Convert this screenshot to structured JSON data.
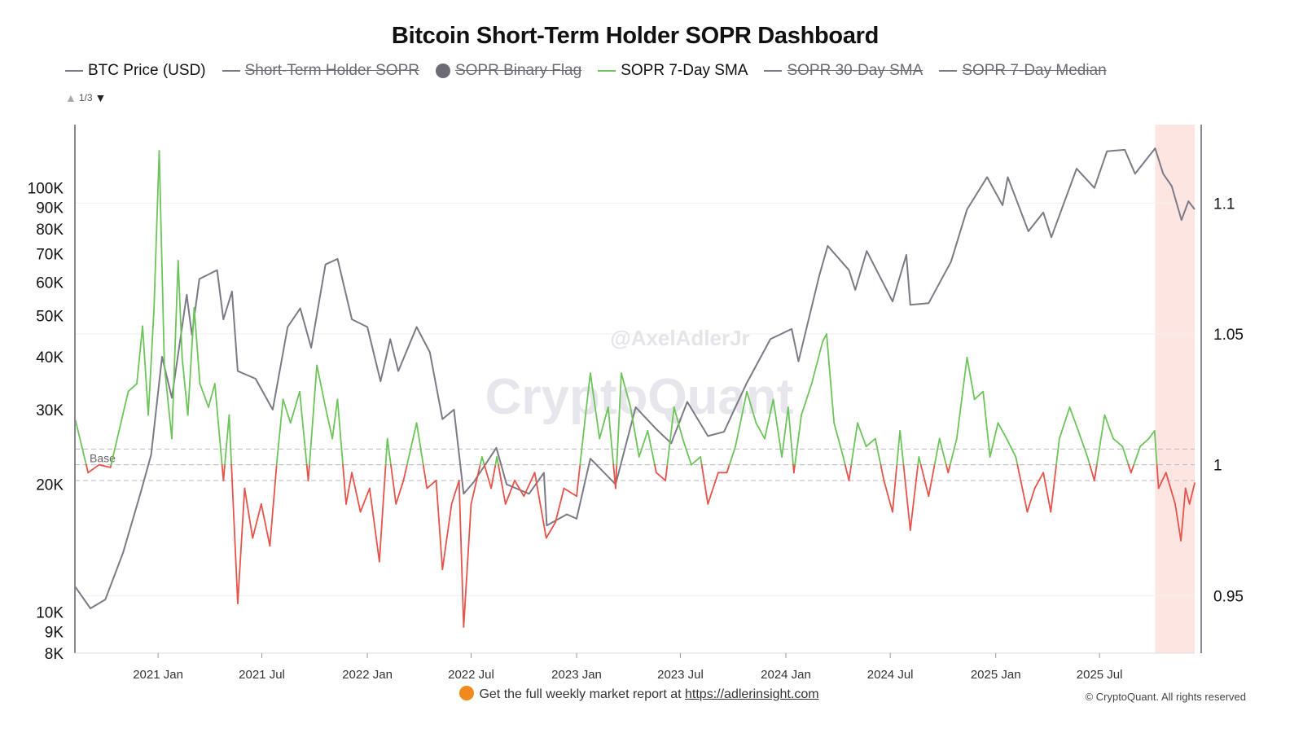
{
  "title": "Bitcoin Short-Term Holder SOPR Dashboard",
  "legend": [
    {
      "label": "BTC Price (USD)",
      "marker": "line",
      "color": "#7d7a87",
      "enabled": true
    },
    {
      "label": "Short-Term Holder SOPR",
      "marker": "line",
      "color": "#7d7a87",
      "enabled": false
    },
    {
      "label": "SOPR Binary Flag",
      "marker": "dot",
      "color": "#6c6a75",
      "enabled": false
    },
    {
      "label": "SOPR 7-Day SMA",
      "marker": "line",
      "color": "#6cc45a",
      "enabled": true
    },
    {
      "label": "SOPR 30-Day SMA",
      "marker": "line",
      "color": "#7d7a87",
      "enabled": false
    },
    {
      "label": "SOPR 7-Day Median",
      "marker": "line",
      "color": "#7d7a87",
      "enabled": false
    }
  ],
  "legend_pager": "1/3",
  "watermark": {
    "handle": "@AxelAdlerJr",
    "brand": "CryptoQuant"
  },
  "footer": {
    "text": "Get the full weekly market report at",
    "link": "https://adlerinsight.com",
    "copyright": "© CryptoQuant. All rights reserved"
  },
  "chart_data": {
    "type": "line",
    "title": "Bitcoin Short-Term Holder SOPR Dashboard",
    "x_range": [
      "2020-08-09",
      "2025-12-14"
    ],
    "x_ticks": [
      {
        "date": "2021-01-01",
        "label": "2021 Jan"
      },
      {
        "date": "2021-07-01",
        "label": "2021 Jul"
      },
      {
        "date": "2022-01-01",
        "label": "2022 Jan"
      },
      {
        "date": "2022-07-01",
        "label": "2022 Jul"
      },
      {
        "date": "2023-01-01",
        "label": "2023 Jan"
      },
      {
        "date": "2023-07-01",
        "label": "2023 Jul"
      },
      {
        "date": "2024-01-01",
        "label": "2024 Jan"
      },
      {
        "date": "2024-07-01",
        "label": "2024 Jul"
      },
      {
        "date": "2025-01-01",
        "label": "2025 Jan"
      },
      {
        "date": "2025-07-01",
        "label": "2025 Jul"
      }
    ],
    "y_left": {
      "scale": "log",
      "range": [
        8000,
        141000
      ],
      "ticks": [
        [
          8000,
          "8K"
        ],
        [
          9000,
          "9K"
        ],
        [
          10000,
          "10K"
        ],
        [
          20000,
          "20K"
        ],
        [
          30000,
          "30K"
        ],
        [
          40000,
          "40K"
        ],
        [
          50000,
          "50K"
        ],
        [
          60000,
          "60K"
        ],
        [
          70000,
          "70K"
        ],
        [
          80000,
          "80K"
        ],
        [
          90000,
          "90K"
        ],
        [
          100000,
          "100K"
        ]
      ]
    },
    "y_right": {
      "scale": "linear",
      "range": [
        0.928,
        1.13
      ],
      "ticks": [
        [
          0.95,
          "0.95"
        ],
        [
          1,
          "1"
        ],
        [
          1.05,
          "1.05"
        ],
        [
          1.1,
          "1.1"
        ]
      ]
    },
    "grid": true,
    "reference_lines": [
      {
        "value": 1.006
      },
      {
        "value": 1.0,
        "label": "Base"
      },
      {
        "value": 0.994
      }
    ],
    "highlight_region": {
      "from": "2025-10-06",
      "to": "2025-12-14",
      "color": "#fde6e2"
    },
    "colors": {
      "price": "#7d7a87",
      "sopr_above": "#6cc45a",
      "sopr_below": "#e5534b"
    },
    "series": [
      {
        "name": "BTC Price (USD)",
        "axis": "left",
        "points": [
          [
            "2020-08-09",
            11500
          ],
          [
            "2020-09-05",
            10200
          ],
          [
            "2020-10-01",
            10700
          ],
          [
            "2020-11-01",
            13800
          ],
          [
            "2020-12-01",
            19000
          ],
          [
            "2020-12-20",
            23500
          ],
          [
            "2021-01-08",
            40000
          ],
          [
            "2021-01-25",
            32000
          ],
          [
            "2021-02-20",
            56000
          ],
          [
            "2021-03-01",
            45000
          ],
          [
            "2021-03-14",
            61000
          ],
          [
            "2021-04-14",
            64000
          ],
          [
            "2021-04-25",
            49000
          ],
          [
            "2021-05-10",
            57000
          ],
          [
            "2021-05-20",
            37000
          ],
          [
            "2021-06-20",
            35500
          ],
          [
            "2021-07-20",
            30000
          ],
          [
            "2021-08-15",
            47000
          ],
          [
            "2021-09-06",
            52000
          ],
          [
            "2021-09-25",
            42000
          ],
          [
            "2021-10-20",
            66000
          ],
          [
            "2021-11-10",
            68000
          ],
          [
            "2021-12-05",
            49000
          ],
          [
            "2022-01-01",
            47000
          ],
          [
            "2022-01-24",
            35000
          ],
          [
            "2022-02-10",
            44000
          ],
          [
            "2022-02-24",
            37000
          ],
          [
            "2022-03-28",
            47000
          ],
          [
            "2022-04-20",
            41000
          ],
          [
            "2022-05-12",
            28500
          ],
          [
            "2022-06-01",
            30000
          ],
          [
            "2022-06-18",
            19000
          ],
          [
            "2022-07-05",
            20200
          ],
          [
            "2022-08-14",
            24400
          ],
          [
            "2022-09-01",
            20000
          ],
          [
            "2022-10-10",
            19000
          ],
          [
            "2022-11-05",
            21300
          ],
          [
            "2022-11-10",
            16000
          ],
          [
            "2022-12-15",
            17000
          ],
          [
            "2023-01-01",
            16600
          ],
          [
            "2023-01-25",
            23000
          ],
          [
            "2023-03-10",
            20000
          ],
          [
            "2023-04-14",
            30400
          ],
          [
            "2023-05-20",
            27000
          ],
          [
            "2023-06-15",
            25000
          ],
          [
            "2023-07-13",
            31300
          ],
          [
            "2023-08-18",
            26000
          ],
          [
            "2023-09-15",
            26600
          ],
          [
            "2023-10-24",
            34500
          ],
          [
            "2023-12-05",
            44000
          ],
          [
            "2024-01-11",
            46500
          ],
          [
            "2024-01-23",
            39000
          ],
          [
            "2024-02-28",
            62000
          ],
          [
            "2024-03-14",
            73000
          ],
          [
            "2024-04-20",
            64000
          ],
          [
            "2024-05-01",
            57500
          ],
          [
            "2024-05-21",
            71000
          ],
          [
            "2024-07-05",
            54000
          ],
          [
            "2024-07-29",
            69500
          ],
          [
            "2024-08-05",
            53000
          ],
          [
            "2024-09-06",
            53500
          ],
          [
            "2024-10-15",
            67000
          ],
          [
            "2024-11-12",
            89000
          ],
          [
            "2024-12-17",
            106000
          ],
          [
            "2025-01-13",
            91000
          ],
          [
            "2025-01-22",
            106000
          ],
          [
            "2025-02-27",
            79000
          ],
          [
            "2025-03-25",
            87500
          ],
          [
            "2025-04-08",
            76500
          ],
          [
            "2025-05-22",
            111000
          ],
          [
            "2025-06-22",
            100000
          ],
          [
            "2025-07-14",
            122000
          ],
          [
            "2025-08-14",
            123000
          ],
          [
            "2025-09-01",
            108000
          ],
          [
            "2025-10-06",
            124000
          ],
          [
            "2025-10-20",
            108000
          ],
          [
            "2025-11-04",
            101000
          ],
          [
            "2025-11-21",
            84000
          ],
          [
            "2025-12-03",
            93000
          ],
          [
            "2025-12-14",
            89000
          ]
        ]
      },
      {
        "name": "SOPR 7-Day SMA",
        "axis": "right",
        "points": [
          [
            "2020-08-10",
            1.017
          ],
          [
            "2020-09-01",
            0.997
          ],
          [
            "2020-09-20",
            1.0
          ],
          [
            "2020-10-10",
            0.999
          ],
          [
            "2020-10-25",
            1.013
          ],
          [
            "2020-11-10",
            1.028
          ],
          [
            "2020-11-25",
            1.031
          ],
          [
            "2020-12-05",
            1.053
          ],
          [
            "2020-12-15",
            1.019
          ],
          [
            "2020-12-25",
            1.06
          ],
          [
            "2021-01-03",
            1.12
          ],
          [
            "2021-01-12",
            1.038
          ],
          [
            "2021-01-25",
            1.01
          ],
          [
            "2021-02-05",
            1.078
          ],
          [
            "2021-02-12",
            1.041
          ],
          [
            "2021-02-22",
            1.019
          ],
          [
            "2021-03-05",
            1.06
          ],
          [
            "2021-03-15",
            1.031
          ],
          [
            "2021-03-30",
            1.022
          ],
          [
            "2021-04-10",
            1.031
          ],
          [
            "2021-04-25",
            0.994
          ],
          [
            "2021-05-05",
            1.019
          ],
          [
            "2021-05-20",
            0.947
          ],
          [
            "2021-06-01",
            0.991
          ],
          [
            "2021-06-15",
            0.972
          ],
          [
            "2021-06-30",
            0.985
          ],
          [
            "2021-07-15",
            0.969
          ],
          [
            "2021-07-28",
            1.003
          ],
          [
            "2021-08-07",
            1.025
          ],
          [
            "2021-08-20",
            1.016
          ],
          [
            "2021-09-05",
            1.028
          ],
          [
            "2021-09-20",
            0.994
          ],
          [
            "2021-10-05",
            1.038
          ],
          [
            "2021-10-20",
            1.022
          ],
          [
            "2021-11-01",
            1.01
          ],
          [
            "2021-11-10",
            1.025
          ],
          [
            "2021-11-25",
            0.985
          ],
          [
            "2021-12-05",
            0.997
          ],
          [
            "2021-12-20",
            0.982
          ],
          [
            "2022-01-05",
            0.991
          ],
          [
            "2022-01-22",
            0.963
          ],
          [
            "2022-02-05",
            1.01
          ],
          [
            "2022-02-20",
            0.985
          ],
          [
            "2022-03-05",
            0.994
          ],
          [
            "2022-03-28",
            1.016
          ],
          [
            "2022-04-15",
            0.991
          ],
          [
            "2022-05-01",
            0.994
          ],
          [
            "2022-05-12",
            0.96
          ],
          [
            "2022-05-28",
            0.985
          ],
          [
            "2022-06-10",
            0.994
          ],
          [
            "2022-06-18",
            0.938
          ],
          [
            "2022-07-01",
            0.985
          ],
          [
            "2022-07-20",
            1.003
          ],
          [
            "2022-08-05",
            0.991
          ],
          [
            "2022-08-15",
            1.003
          ],
          [
            "2022-08-30",
            0.985
          ],
          [
            "2022-09-15",
            0.994
          ],
          [
            "2022-10-01",
            0.988
          ],
          [
            "2022-10-20",
            0.997
          ],
          [
            "2022-11-09",
            0.972
          ],
          [
            "2022-11-25",
            0.978
          ],
          [
            "2022-12-10",
            0.991
          ],
          [
            "2023-01-01",
            0.988
          ],
          [
            "2023-01-15",
            1.016
          ],
          [
            "2023-01-25",
            1.035
          ],
          [
            "2023-02-10",
            1.01
          ],
          [
            "2023-02-25",
            1.022
          ],
          [
            "2023-03-10",
            0.991
          ],
          [
            "2023-03-20",
            1.035
          ],
          [
            "2023-04-05",
            1.022
          ],
          [
            "2023-04-20",
            1.003
          ],
          [
            "2023-05-05",
            1.013
          ],
          [
            "2023-05-20",
            0.997
          ],
          [
            "2023-06-05",
            0.994
          ],
          [
            "2023-06-20",
            1.022
          ],
          [
            "2023-07-05",
            1.01
          ],
          [
            "2023-07-20",
            1.0
          ],
          [
            "2023-08-05",
            1.003
          ],
          [
            "2023-08-18",
            0.985
          ],
          [
            "2023-09-05",
            0.997
          ],
          [
            "2023-09-20",
            0.997
          ],
          [
            "2023-10-05",
            1.007
          ],
          [
            "2023-10-25",
            1.028
          ],
          [
            "2023-11-10",
            1.016
          ],
          [
            "2023-11-25",
            1.01
          ],
          [
            "2023-12-10",
            1.025
          ],
          [
            "2023-12-25",
            1.003
          ],
          [
            "2024-01-05",
            1.022
          ],
          [
            "2024-01-15",
            0.997
          ],
          [
            "2024-01-28",
            1.019
          ],
          [
            "2024-02-15",
            1.031
          ],
          [
            "2024-03-05",
            1.047
          ],
          [
            "2024-03-12",
            1.05
          ],
          [
            "2024-03-25",
            1.016
          ],
          [
            "2024-04-10",
            1.003
          ],
          [
            "2024-04-20",
            0.994
          ],
          [
            "2024-05-05",
            1.016
          ],
          [
            "2024-05-20",
            1.007
          ],
          [
            "2024-06-05",
            1.01
          ],
          [
            "2024-06-20",
            0.994
          ],
          [
            "2024-07-05",
            0.982
          ],
          [
            "2024-07-18",
            1.013
          ],
          [
            "2024-08-05",
            0.975
          ],
          [
            "2024-08-20",
            1.003
          ],
          [
            "2024-09-06",
            0.988
          ],
          [
            "2024-09-25",
            1.01
          ],
          [
            "2024-10-10",
            0.997
          ],
          [
            "2024-10-25",
            1.01
          ],
          [
            "2024-11-12",
            1.041
          ],
          [
            "2024-11-25",
            1.025
          ],
          [
            "2024-12-10",
            1.028
          ],
          [
            "2024-12-22",
            1.003
          ],
          [
            "2025-01-05",
            1.016
          ],
          [
            "2025-01-20",
            1.01
          ],
          [
            "2025-02-05",
            1.003
          ],
          [
            "2025-02-25",
            0.982
          ],
          [
            "2025-03-10",
            0.991
          ],
          [
            "2025-03-25",
            0.997
          ],
          [
            "2025-04-07",
            0.982
          ],
          [
            "2025-04-22",
            1.01
          ],
          [
            "2025-05-10",
            1.022
          ],
          [
            "2025-05-25",
            1.013
          ],
          [
            "2025-06-10",
            1.003
          ],
          [
            "2025-06-22",
            0.994
          ],
          [
            "2025-07-10",
            1.019
          ],
          [
            "2025-07-25",
            1.01
          ],
          [
            "2025-08-10",
            1.007
          ],
          [
            "2025-08-25",
            0.997
          ],
          [
            "2025-09-10",
            1.007
          ],
          [
            "2025-09-25",
            1.01
          ],
          [
            "2025-10-05",
            1.013
          ],
          [
            "2025-10-12",
            0.991
          ],
          [
            "2025-10-25",
            0.997
          ],
          [
            "2025-11-10",
            0.985
          ],
          [
            "2025-11-20",
            0.971
          ],
          [
            "2025-11-28",
            0.991
          ],
          [
            "2025-12-05",
            0.985
          ],
          [
            "2025-12-14",
            0.993
          ]
        ]
      }
    ]
  }
}
